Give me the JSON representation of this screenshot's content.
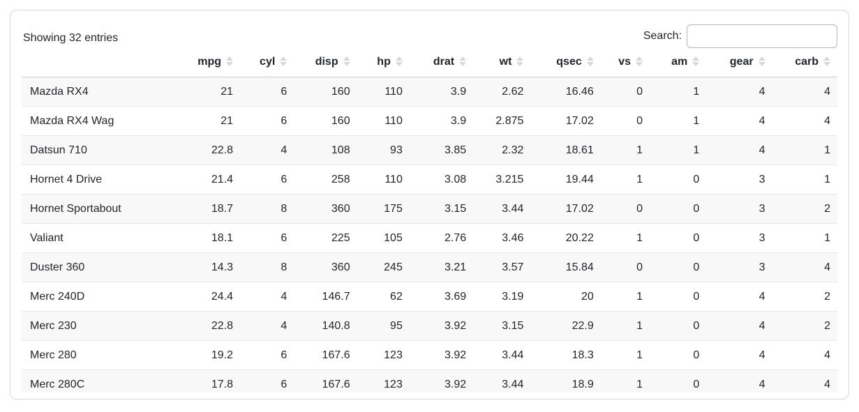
{
  "info_text": "Showing 32 entries",
  "search": {
    "label": "Search:",
    "value": ""
  },
  "table": {
    "rowname_header": "",
    "columns": [
      "mpg",
      "cyl",
      "disp",
      "hp",
      "drat",
      "wt",
      "qsec",
      "vs",
      "am",
      "gear",
      "carb"
    ],
    "rows": [
      {
        "name": "Mazda RX4",
        "values": [
          21,
          6,
          160,
          110,
          3.9,
          2.62,
          16.46,
          0,
          1,
          4,
          4
        ]
      },
      {
        "name": "Mazda RX4 Wag",
        "values": [
          21,
          6,
          160,
          110,
          3.9,
          2.875,
          17.02,
          0,
          1,
          4,
          4
        ]
      },
      {
        "name": "Datsun 710",
        "values": [
          22.8,
          4,
          108,
          93,
          3.85,
          2.32,
          18.61,
          1,
          1,
          4,
          1
        ]
      },
      {
        "name": "Hornet 4 Drive",
        "values": [
          21.4,
          6,
          258,
          110,
          3.08,
          3.215,
          19.44,
          1,
          0,
          3,
          1
        ]
      },
      {
        "name": "Hornet Sportabout",
        "values": [
          18.7,
          8,
          360,
          175,
          3.15,
          3.44,
          17.02,
          0,
          0,
          3,
          2
        ]
      },
      {
        "name": "Valiant",
        "values": [
          18.1,
          6,
          225,
          105,
          2.76,
          3.46,
          20.22,
          1,
          0,
          3,
          1
        ]
      },
      {
        "name": "Duster 360",
        "values": [
          14.3,
          8,
          360,
          245,
          3.21,
          3.57,
          15.84,
          0,
          0,
          3,
          4
        ]
      },
      {
        "name": "Merc 240D",
        "values": [
          24.4,
          4,
          146.7,
          62,
          3.69,
          3.19,
          20,
          1,
          0,
          4,
          2
        ]
      },
      {
        "name": "Merc 230",
        "values": [
          22.8,
          4,
          140.8,
          95,
          3.92,
          3.15,
          22.9,
          1,
          0,
          4,
          2
        ]
      },
      {
        "name": "Merc 280",
        "values": [
          19.2,
          6,
          167.6,
          123,
          3.92,
          3.44,
          18.3,
          1,
          0,
          4,
          4
        ]
      },
      {
        "name": "Merc 280C",
        "values": [
          17.8,
          6,
          167.6,
          123,
          3.92,
          3.44,
          18.9,
          1,
          0,
          4,
          4
        ]
      }
    ]
  },
  "colors": {
    "card_border": "#d8d8d8",
    "row_stripe": "#f8f8f9",
    "row_divider": "#e6e6e6",
    "header_divider": "#c9c9c9",
    "text": "#212529",
    "sort_icon": "#d7d7d7",
    "input_border": "#b4b4b4"
  }
}
